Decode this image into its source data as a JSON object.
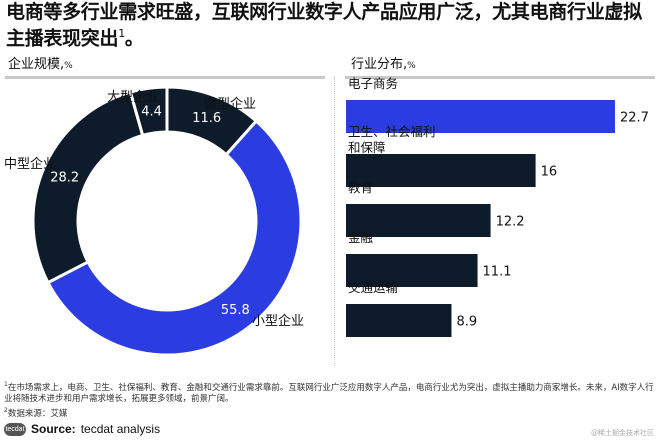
{
  "title": "电商等多行业需求旺盛，互联网行业数字人产品应用广泛，尤其电商行业虚拟主播表现突出",
  "title_sup": "1",
  "title_end": "。",
  "footnotes": {
    "note1_mark": "1",
    "note1": "在市场需求上，电商、卫生、社保福利、教育、金融和交通行业需求靠前。互联网行业广泛应用数字人产品，电商行业尤为突出，虚拟主播助力商家增长。未来，AI数字人行业将随技术进步和用户需求增长，拓展更多领域，前景广阔。",
    "note2_mark": "2",
    "note2": "数据来源：艾媒"
  },
  "source": {
    "logo": "tecdat",
    "label": "Source:",
    "text": "tecdat analysis"
  },
  "watermark": "@稀土掘金技术社区",
  "colors": {
    "dark": "#0d1b2a",
    "blue": "#2b3de0",
    "rule": "#c8c8c8"
  },
  "chart_data": [
    {
      "type": "pie",
      "donut": true,
      "title": "企业规模",
      "unit": "%",
      "categories": [
        "微型企业",
        "小型企业",
        "中型企业",
        "大型企业"
      ],
      "values": [
        11.6,
        55.8,
        28.2,
        4.4
      ],
      "colors": [
        "#0d1b2a",
        "#2b3de0",
        "#0d1b2a",
        "#0d1b2a"
      ],
      "start": "12 o'clock, clockwise"
    },
    {
      "type": "bar",
      "orientation": "horizontal",
      "title": "行业分布",
      "unit": "%",
      "categories": [
        "电子商务",
        "卫生、社会福利和保障",
        "教育",
        "金融",
        "交通运输"
      ],
      "values": [
        22.7,
        16,
        12.2,
        11.1,
        8.9
      ],
      "colors": [
        "#2b3de0",
        "#0d1b2a",
        "#0d1b2a",
        "#0d1b2a",
        "#0d1b2a"
      ],
      "grid": false
    }
  ]
}
